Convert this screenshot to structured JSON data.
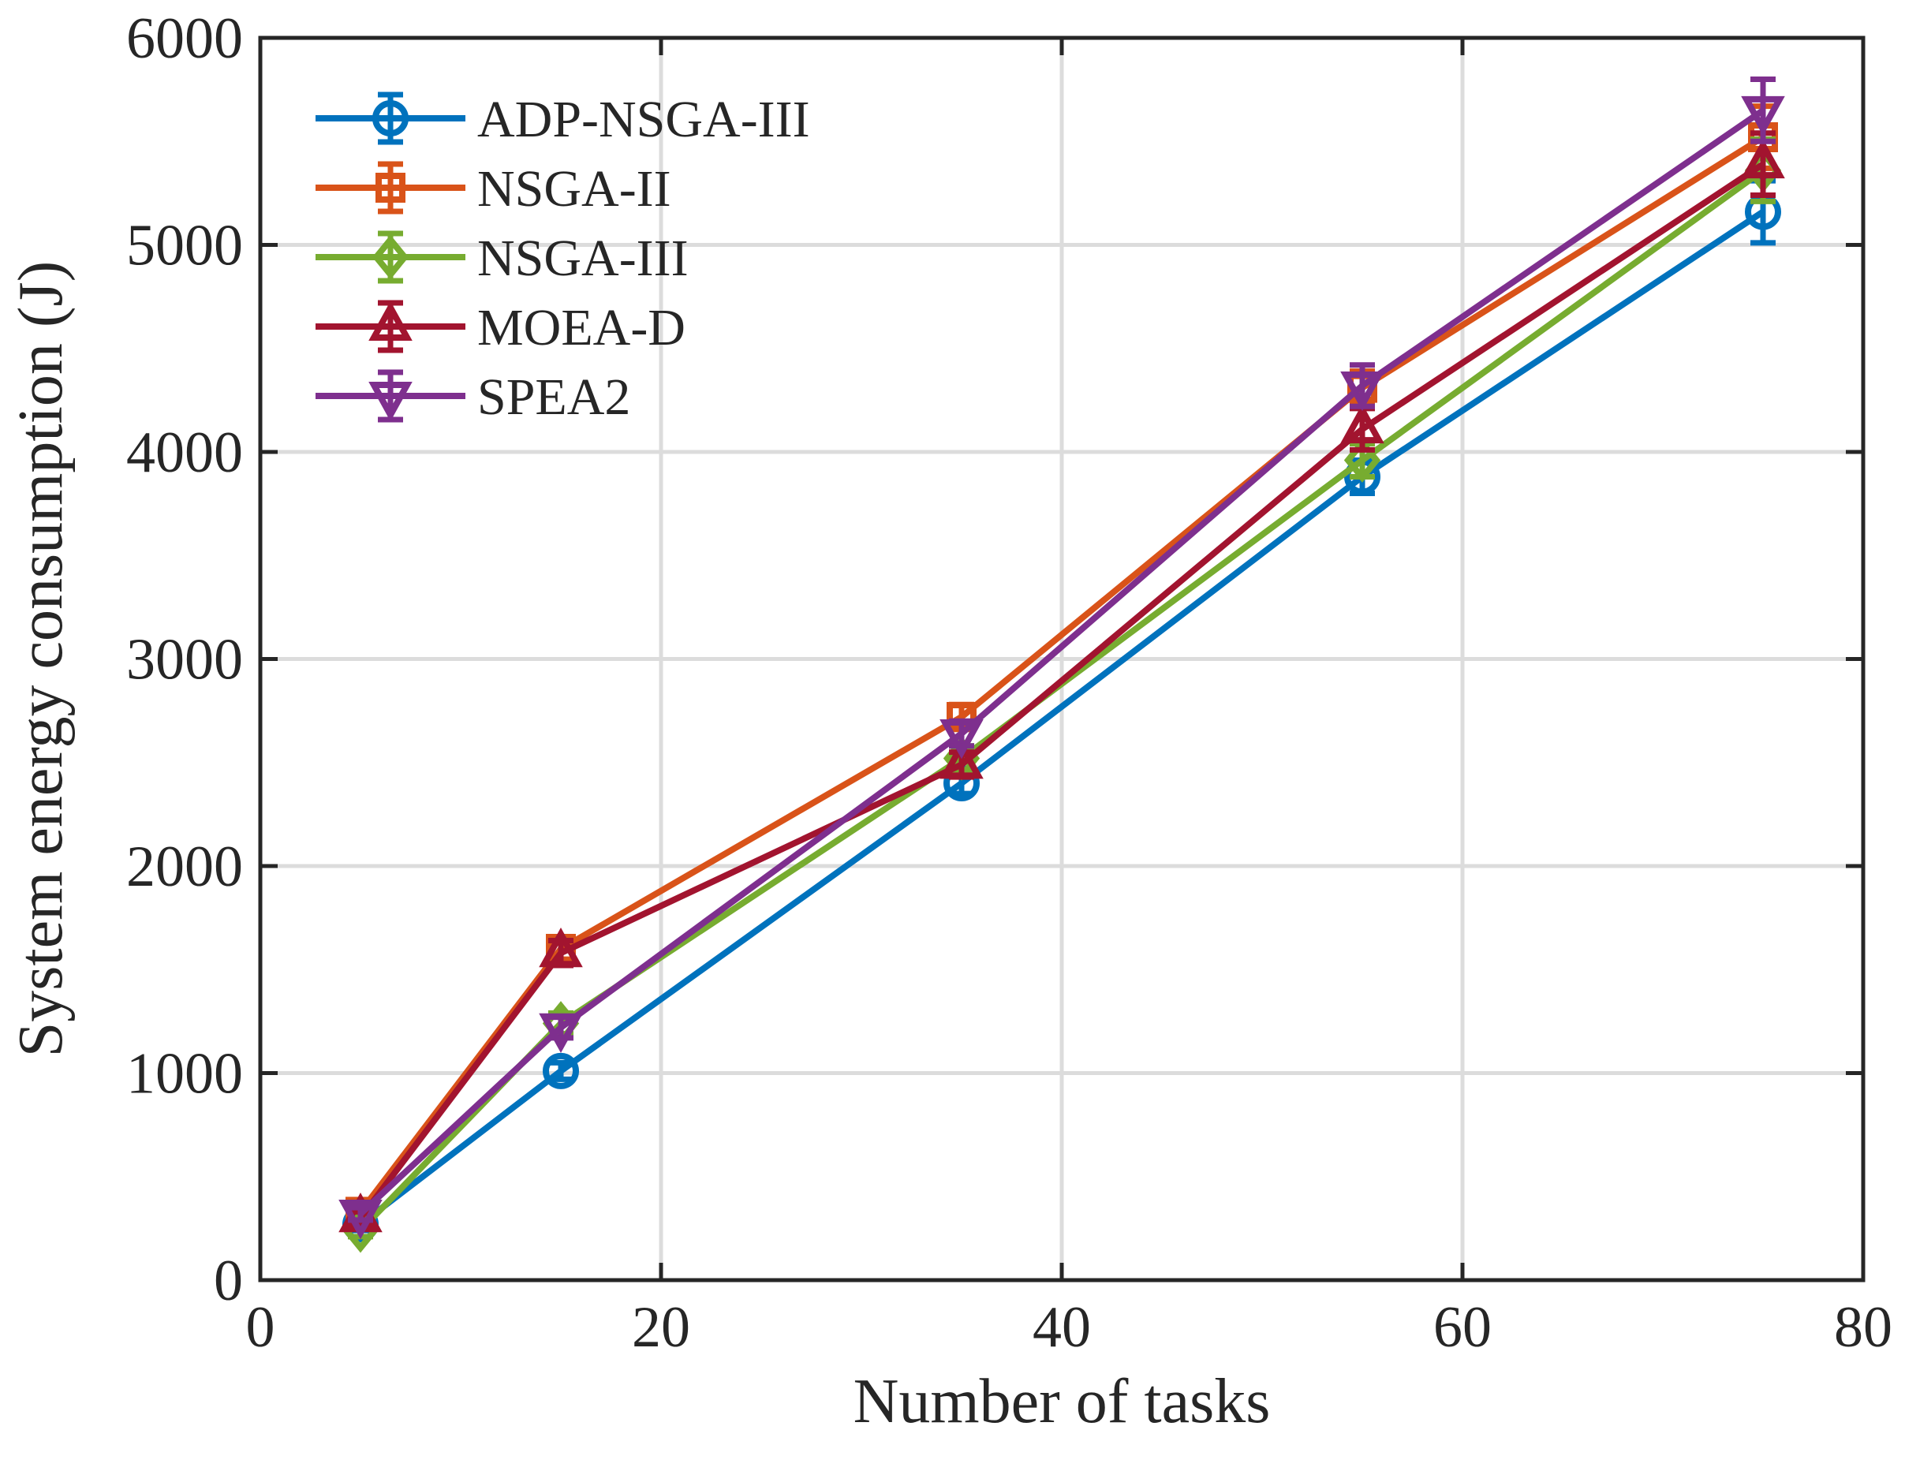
{
  "chart_data": {
    "type": "line",
    "title": "",
    "xlabel": "Number of tasks",
    "ylabel": "System energy consumption (J)",
    "xlim": [
      0,
      80
    ],
    "ylim": [
      0,
      6000
    ],
    "xticks": [
      0,
      20,
      40,
      60,
      80
    ],
    "yticks": [
      0,
      1000,
      2000,
      3000,
      4000,
      5000,
      6000
    ],
    "grid": true,
    "legend_position": "top-left",
    "x": [
      5,
      15,
      35,
      55,
      75
    ],
    "series": [
      {
        "name": "ADP-NSGA-III",
        "color": "#0072BD",
        "marker": "circle",
        "values": [
          270,
          1010,
          2400,
          3880,
          5160
        ],
        "errors": [
          30,
          40,
          50,
          80,
          150
        ]
      },
      {
        "name": "NSGA-II",
        "color": "#D95319",
        "marker": "square",
        "values": [
          330,
          1600,
          2720,
          4310,
          5520
        ],
        "errors": [
          30,
          50,
          60,
          80,
          150
        ]
      },
      {
        "name": "NSGA-III",
        "color": "#77AC30",
        "marker": "diamond",
        "values": [
          240,
          1240,
          2520,
          3960,
          5360
        ],
        "errors": [
          30,
          50,
          60,
          80,
          150
        ]
      },
      {
        "name": "MOEA-D",
        "color": "#A2142F",
        "marker": "triangle-up",
        "values": [
          300,
          1580,
          2490,
          4110,
          5390
        ],
        "errors": [
          30,
          60,
          60,
          100,
          150
        ]
      },
      {
        "name": "SPEA2",
        "color": "#7E2F8E",
        "marker": "triangle-down",
        "values": [
          320,
          1220,
          2640,
          4320,
          5650
        ],
        "errors": [
          30,
          50,
          60,
          100,
          150
        ]
      }
    ]
  }
}
